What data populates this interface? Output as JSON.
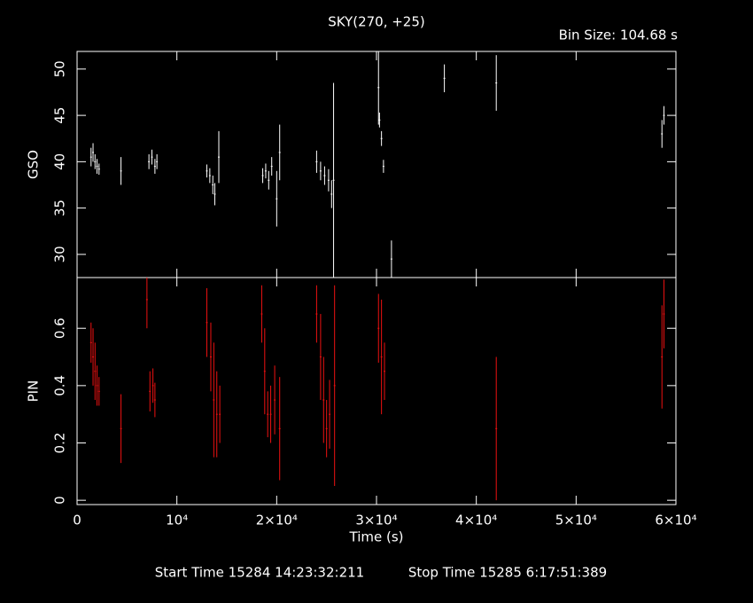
{
  "title": "SKY(270, +25)",
  "bin_size": "Bin Size: 104.68 s",
  "start_time": "Start Time 15284 14:23:32:211",
  "stop_time": "Stop Time 15285  6:17:51:389",
  "chart_data": [
    {
      "type": "errorbar",
      "ylabel": "GSO",
      "color": "#ffffff",
      "x": [
        1400,
        1600,
        1800,
        2000,
        2200,
        4400,
        7200,
        7500,
        7800,
        8000,
        13000,
        13300,
        13600,
        13800,
        14200,
        18600,
        18900,
        19200,
        19500,
        20000,
        20300,
        24000,
        24400,
        24800,
        25200,
        25500,
        25700,
        30200,
        30300,
        30500,
        30700,
        31500,
        36800,
        42000,
        58600,
        58800
      ],
      "values": [
        40.5,
        41,
        40,
        39.5,
        39.2,
        39,
        40,
        40.5,
        39.5,
        40,
        39,
        38.5,
        37.5,
        36.5,
        40.5,
        38.5,
        39,
        38,
        39.5,
        36,
        41,
        40,
        39,
        38.5,
        38,
        36.5,
        38,
        48,
        44.5,
        42.5,
        39.5,
        29.5,
        49,
        48.5,
        43,
        45
      ],
      "errors": [
        1,
        1,
        0.8,
        0.8,
        0.6,
        1.5,
        0.8,
        0.8,
        0.8,
        0.8,
        0.7,
        0.8,
        1,
        1.2,
        2.8,
        0.8,
        0.8,
        1,
        1,
        3,
        3,
        1.2,
        1,
        1,
        1.2,
        1.5,
        10.5,
        4,
        0.8,
        0.8,
        0.7,
        2,
        1.5,
        3,
        1.5,
        1
      ],
      "xlim": [
        0,
        60000
      ],
      "ylim": [
        27.5,
        51.9
      ],
      "xticks": [
        0,
        10000,
        20000,
        30000,
        40000,
        50000,
        60000
      ],
      "yticks": [
        30,
        35,
        40,
        45,
        50
      ]
    },
    {
      "type": "errorbar",
      "ylabel": "PIN",
      "xlabel": "Time (s)",
      "color": "#ee1111",
      "x": [
        1400,
        1600,
        1800,
        2000,
        2200,
        4400,
        7000,
        7300,
        7600,
        7800,
        13000,
        13400,
        13700,
        14000,
        14300,
        18500,
        18800,
        19100,
        19400,
        19800,
        20300,
        24000,
        24400,
        24700,
        25000,
        25300,
        25800,
        30200,
        30500,
        30800,
        42000,
        58600,
        58800
      ],
      "values": [
        0.55,
        0.5,
        0.45,
        0.4,
        0.38,
        0.25,
        0.7,
        0.38,
        0.4,
        0.35,
        0.62,
        0.5,
        0.35,
        0.3,
        0.3,
        0.65,
        0.45,
        0.3,
        0.3,
        0.35,
        0.25,
        0.65,
        0.5,
        0.35,
        0.25,
        0.3,
        0.4,
        0.6,
        0.5,
        0.45,
        0.25,
        0.5,
        0.65
      ],
      "errors": [
        0.07,
        0.1,
        0.1,
        0.07,
        0.05,
        0.12,
        0.1,
        0.07,
        0.06,
        0.06,
        0.12,
        0.12,
        0.2,
        0.15,
        0.1,
        0.1,
        0.15,
        0.08,
        0.1,
        0.12,
        0.18,
        0.1,
        0.15,
        0.15,
        0.1,
        0.12,
        0.35,
        0.12,
        0.2,
        0.1,
        0.25,
        0.18,
        0.12
      ],
      "xlim": [
        0,
        60000
      ],
      "ylim": [
        -0.015,
        0.777
      ],
      "xticks": [
        0,
        {
          "value": 10000,
          "label": "10⁴"
        },
        {
          "value": 20000,
          "label": "2×10⁴"
        },
        {
          "value": 30000,
          "label": "3×10⁴"
        },
        {
          "value": 40000,
          "label": "4×10⁴"
        },
        {
          "value": 50000,
          "label": "5×10⁴"
        },
        {
          "value": 60000,
          "label": "6×10⁴"
        }
      ],
      "yticks": [
        0,
        0.2,
        0.4,
        0.6
      ]
    }
  ]
}
